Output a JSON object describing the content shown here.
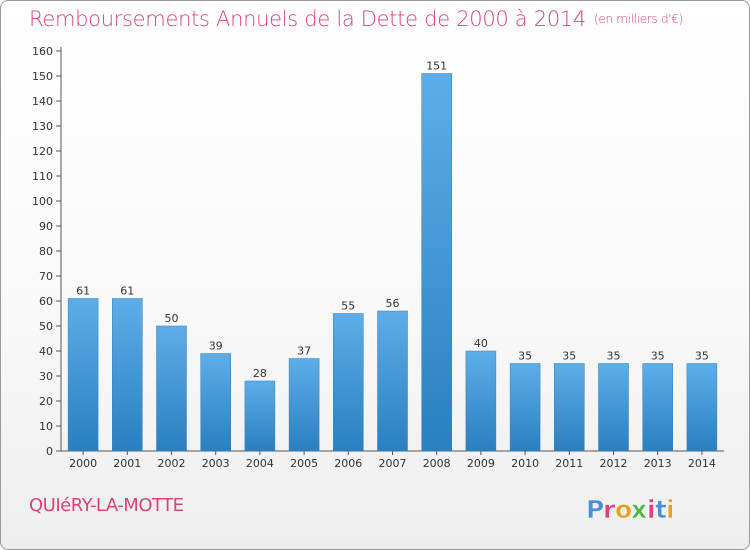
{
  "header": {
    "title": "Remboursements Annuels de la Dette de 2000 à 2014",
    "unit": "(en milliers d'€)"
  },
  "footer": {
    "commune": "QUIéRY-LA-MOTTE",
    "logo_text": "Proxiti"
  },
  "colors": {
    "title": "#e0407a",
    "bar_light": "#5daee8",
    "bar_dark": "#2a7fc0",
    "logo_letters": [
      "#4a90d9",
      "#e0407a",
      "#e8a020",
      "#50b848",
      "#e0407a",
      "#4a90d9",
      "#e8a020"
    ]
  },
  "chart_data": {
    "type": "bar",
    "categories": [
      "2000",
      "2001",
      "2002",
      "2003",
      "2004",
      "2005",
      "2006",
      "2007",
      "2008",
      "2009",
      "2010",
      "2011",
      "2012",
      "2013",
      "2014"
    ],
    "values": [
      61,
      61,
      50,
      39,
      28,
      37,
      55,
      56,
      151,
      40,
      35,
      35,
      35,
      35,
      35
    ],
    "title": "Remboursements Annuels de la Dette de 2000 à 2014",
    "xlabel": "",
    "ylabel": "",
    "ylim": [
      0,
      160
    ],
    "yticks": [
      0,
      10,
      20,
      30,
      40,
      50,
      60,
      70,
      80,
      90,
      100,
      110,
      120,
      130,
      140,
      150,
      160
    ],
    "grid": false,
    "data_labels": true
  }
}
